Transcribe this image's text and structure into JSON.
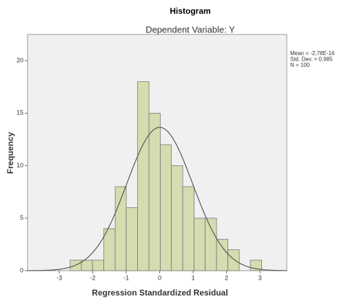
{
  "chart_data": {
    "type": "histogram",
    "title": "Histogram",
    "subtitle": "Dependent Variable: Y",
    "x_label": "Regression Standardized Residual",
    "y_label": "Frequency",
    "bins": [
      -2.68,
      -2.34,
      -2.01,
      -1.67,
      -1.33,
      -1.0,
      -0.66,
      -0.32,
      0.02,
      0.35,
      0.69,
      1.03,
      1.36,
      1.7,
      2.04,
      2.38,
      2.71,
      3.05
    ],
    "values": [
      1,
      1,
      1,
      4,
      8,
      6,
      18,
      15,
      12,
      10,
      8,
      5,
      5,
      3,
      2,
      0,
      1
    ],
    "color": "#d4dcb0",
    "curve_color": "#555555",
    "xlim": [
      -3.95,
      3.8
    ],
    "ylim": [
      0,
      22.5
    ],
    "xticks": [
      -3,
      -2,
      -1,
      0,
      1,
      2,
      3
    ],
    "yticks": [
      0,
      5,
      10,
      15,
      20
    ],
    "stats": [
      {
        "label": "Mean = -2,78E-16",
        "value": -2.78e-16
      },
      {
        "label": "Std. Dev. = 0,985",
        "value": 0.985
      },
      {
        "label": "N = 100",
        "value": 100
      }
    ]
  }
}
